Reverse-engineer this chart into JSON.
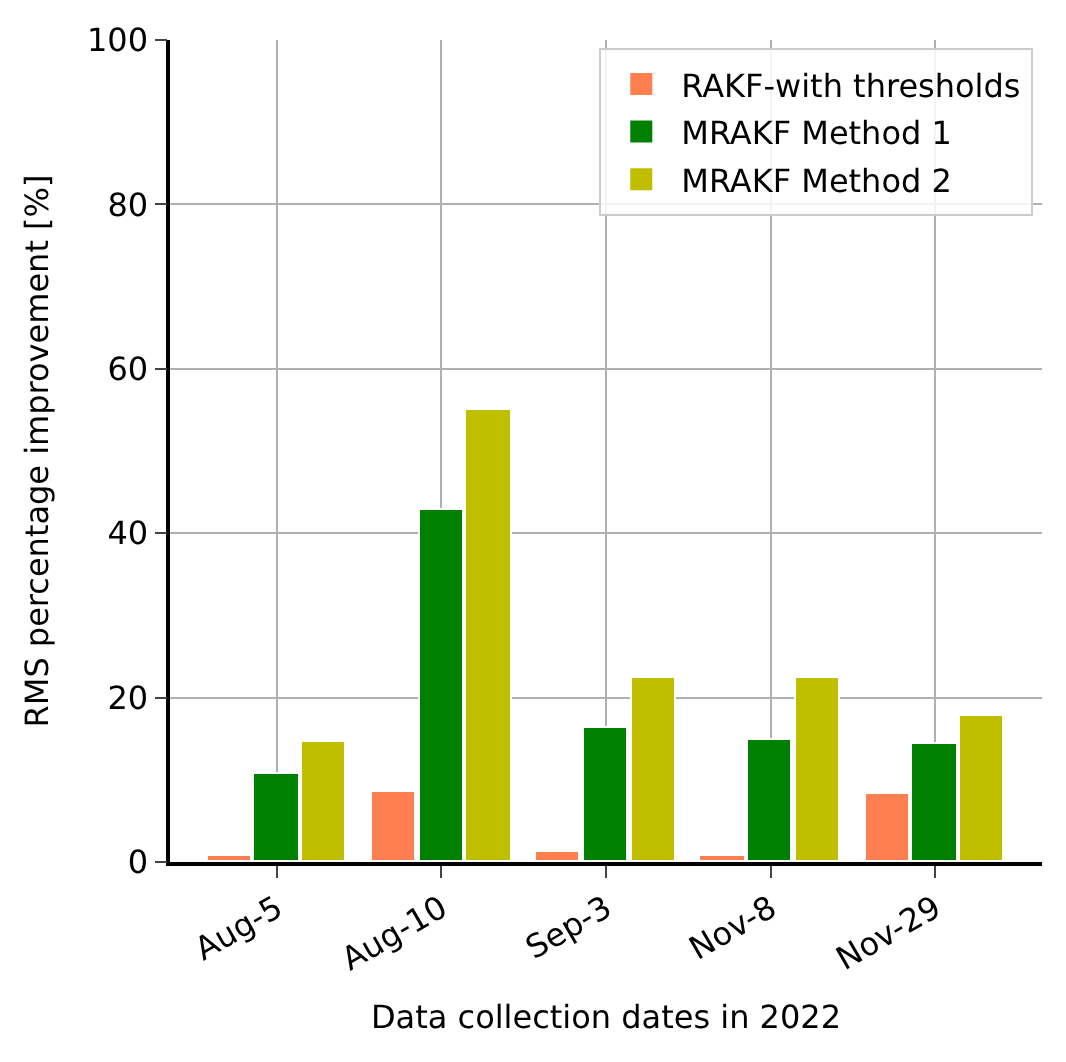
{
  "chart_data": {
    "type": "bar",
    "xlabel": "Data collection dates in 2022",
    "ylabel": "RMS percentage improvement [%]",
    "categories": [
      "Aug-5",
      "Aug-10",
      "Sep-3",
      "Nov-8",
      "Nov-29"
    ],
    "series": [
      {
        "name": "RAKF-with thresholds",
        "color": "#ff7f50",
        "values": [
          0.7,
          8.5,
          1.1,
          0.7,
          8.3
        ]
      },
      {
        "name": "MRAKF Method 1",
        "color": "#008000",
        "values": [
          10.8,
          42.8,
          16.3,
          14.8,
          14.4
        ]
      },
      {
        "name": "MRAKF Method 2",
        "color": "#bfbf00",
        "values": [
          14.7,
          54.9,
          22.3,
          22.3,
          17.7
        ]
      }
    ],
    "ylim": [
      0,
      100
    ],
    "yticks": [
      0,
      20,
      40,
      60,
      80,
      100
    ],
    "grid": true,
    "legend": "top right"
  }
}
